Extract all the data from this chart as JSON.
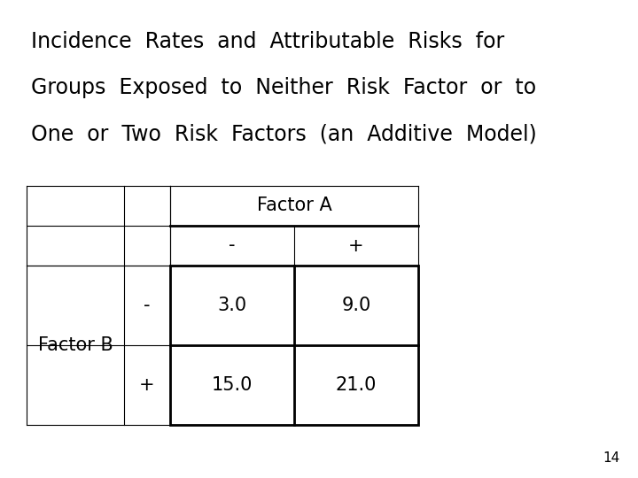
{
  "title_lines": [
    "Incidence  Rates  and  Attributable  Risks  for",
    "Groups  Exposed  to  Neither  Risk  Factor  or  to",
    "One  or  Two  Risk  Factors  (an  Additive  Model)"
  ],
  "factor_a_label": "Factor A",
  "factor_b_label": "Factor B",
  "col_minus": "-",
  "col_plus": "+",
  "row_minus": "-",
  "row_plus": "+",
  "cell_00": "3.0",
  "cell_01": "9.0",
  "cell_10": "15.0",
  "cell_11": "21.0",
  "page_number": "14",
  "bg_color": "#ffffff",
  "text_color": "#000000",
  "title_fontsize": 17,
  "table_fontsize": 15,
  "page_fontsize": 11,
  "font_family": "DejaVu Sans"
}
